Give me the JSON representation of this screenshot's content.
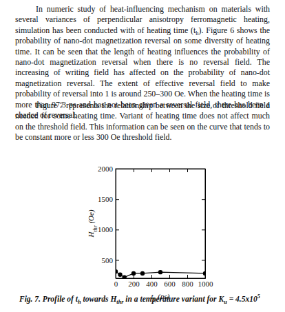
{
  "paragraphs": [
    {
      "runs": [
        {
          "text": "In numeric study of heat-influencing mechanism on materials with several variances of perpendicular anisotropy ferromagnetic heating, simulation has been conducted with of heating time (t"
        },
        {
          "text": "h",
          "sub": true
        },
        {
          "text": "). Figure 6 shows the probability of nano-dot magnetization reversal on some diversity of heating time. It can be seen that the length of heating influences the probability of nano-dot magnetization reversal when there is no reversal field. The increasing of writing field has affected on the probability of nano-dot magnetization reversal. The extent of effective reversal field to make probability of reversal into 1 is around 250–300 Oe. When the heating time is more than 97.3 ps and has not been given a reversal field, there has been a chance of reversal."
        }
      ]
    },
    {
      "runs": [
        {
          "text": "Figure 7 represents the relationship between the size of threshold field needed for some heating time. Variant of heating time does not affect much on the threshold field. This information can be seen on the curve that tends to be constant more or less  300 Oe threshold field."
        }
      ]
    }
  ],
  "caption": {
    "runs": [
      {
        "text": "Fig. 7. Profile of t"
      },
      {
        "text": "h",
        "sub": true
      },
      {
        "text": " towards H"
      },
      {
        "text": "thr",
        "sub": true
      },
      {
        "text": " in a temperature variant for K"
      },
      {
        "text": "u",
        "sub": true
      },
      {
        "text": " = 4.5x10"
      },
      {
        "text": "5",
        "sup": true
      }
    ]
  },
  "chart_data": {
    "type": "line",
    "x": [
      0,
      50,
      97.3,
      200,
      300,
      500,
      1000
    ],
    "values": [
      310,
      260,
      215,
      280,
      280,
      300,
      280
    ],
    "color": "#000000",
    "marker": "circle",
    "xlim": [
      0,
      1000
    ],
    "ylim": [
      200,
      2000
    ],
    "xticks": [
      0,
      200,
      400,
      600,
      800,
      1000
    ],
    "yticks": [
      500,
      1000,
      1500,
      2000
    ],
    "x_label": [
      {
        "text": "t"
      },
      {
        "text": "h",
        "sub": true
      },
      {
        "text": " (ps)"
      }
    ],
    "y_label": [
      {
        "text": "H"
      },
      {
        "text": "thr",
        "sub": true
      },
      {
        "text": " (Oe)"
      }
    ]
  }
}
